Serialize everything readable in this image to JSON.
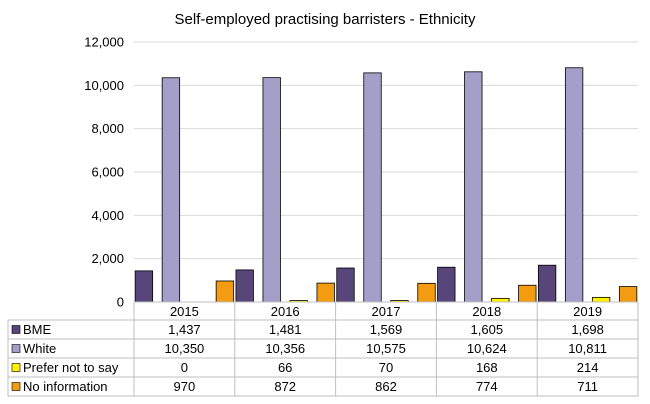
{
  "chart_data": {
    "type": "bar",
    "title": "Self-employed practising barristers - Ethnicity",
    "categories": [
      "2015",
      "2016",
      "2017",
      "2018",
      "2019"
    ],
    "series": [
      {
        "name": "BME",
        "values": [
          1437,
          1481,
          1569,
          1605,
          1698
        ],
        "labels": [
          "1,437",
          "1,481",
          "1,569",
          "1,605",
          "1,698"
        ],
        "color": "#58467A"
      },
      {
        "name": "White",
        "values": [
          10350,
          10356,
          10575,
          10624,
          10811
        ],
        "labels": [
          "10,350",
          "10,356",
          "10,575",
          "10,624",
          "10,811"
        ],
        "color": "#A49FC8"
      },
      {
        "name": "Prefer not to say",
        "values": [
          0,
          66,
          70,
          168,
          214
        ],
        "labels": [
          "0",
          "66",
          "70",
          "168",
          "214"
        ],
        "color": "#FFF200"
      },
      {
        "name": "No information",
        "values": [
          970,
          872,
          862,
          774,
          711
        ],
        "labels": [
          "970",
          "872",
          "862",
          "774",
          "711"
        ],
        "color": "#F39C12"
      }
    ],
    "y_ticks": [
      0,
      2000,
      4000,
      6000,
      8000,
      10000,
      12000
    ],
    "y_tick_labels": [
      "0",
      "2,000",
      "4,000",
      "6,000",
      "8,000",
      "10,000",
      "12,000"
    ],
    "ylim": [
      0,
      12000
    ],
    "grid": true,
    "legend": "data-table"
  }
}
